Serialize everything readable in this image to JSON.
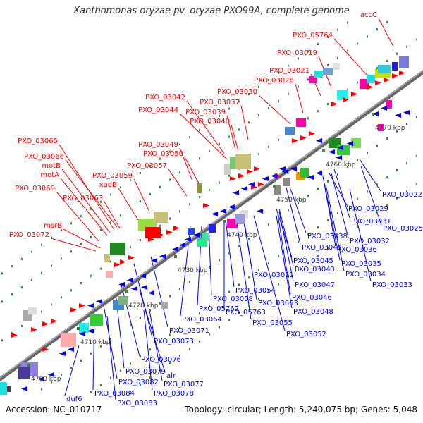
{
  "title": "Xanthomonas oryzae pv. oryzae PXO99A, complete genome",
  "footer": {
    "accession": "Accession: NC_010717",
    "summary": "Topology: circular; Length: 5,240,075 bp; Genes: 5,048"
  },
  "colors": {
    "forward_label": "#ee0000",
    "reverse_label": "#0000dd",
    "backbone": "#777777",
    "tick": "#339933"
  },
  "position_ticks": [
    {
      "label": "4700 kbp"
    },
    {
      "label": "4710 kbp"
    },
    {
      "label": "4720 kbp"
    },
    {
      "label": "4730 kbp"
    },
    {
      "label": "4740 kbp"
    },
    {
      "label": "4750 kbp"
    },
    {
      "label": "4760 kbp"
    },
    {
      "label": "4770 kbp"
    }
  ],
  "forward_labels": [
    {
      "text": "accC"
    },
    {
      "text": "PXO_05764"
    },
    {
      "text": "PXO_03019"
    },
    {
      "text": "PXO_03021"
    },
    {
      "text": "PXO_03028"
    },
    {
      "text": "PXO_03030"
    },
    {
      "text": "PXO_03042"
    },
    {
      "text": "PXO_03037"
    },
    {
      "text": "PXO_03044"
    },
    {
      "text": "PXO_03039"
    },
    {
      "text": "PXO_03040"
    },
    {
      "text": "PXO_03049"
    },
    {
      "text": "PXO_03065"
    },
    {
      "text": "PXO_03050"
    },
    {
      "text": "PXO_03066"
    },
    {
      "text": "PXO_03057"
    },
    {
      "text": "motB"
    },
    {
      "text": "motA"
    },
    {
      "text": "PXO_03059"
    },
    {
      "text": "xadB"
    },
    {
      "text": "PXO_03069"
    },
    {
      "text": "PXO_03063"
    },
    {
      "text": "msrB"
    },
    {
      "text": "PXO_03072"
    }
  ],
  "reverse_labels": [
    {
      "text": "PXO_03022"
    },
    {
      "text": "PXO_03029"
    },
    {
      "text": "PXO_03031"
    },
    {
      "text": "PXO_03025"
    },
    {
      "text": "PXO_03038"
    },
    {
      "text": "PXO_03032"
    },
    {
      "text": "PXO_03041"
    },
    {
      "text": "PXO_03036"
    },
    {
      "text": "PXO_03045"
    },
    {
      "text": "PXO_03035"
    },
    {
      "text": "PXO_03043"
    },
    {
      "text": "PXO_03034"
    },
    {
      "text": "PXO_03051"
    },
    {
      "text": "PXO_03033"
    },
    {
      "text": "PXO_03047"
    },
    {
      "text": "PXO_03054"
    },
    {
      "text": "PXO_03046"
    },
    {
      "text": "PXO_03058"
    },
    {
      "text": "PXO_03053"
    },
    {
      "text": "PXO_05762"
    },
    {
      "text": "PXO_05763"
    },
    {
      "text": "PXO_03048"
    },
    {
      "text": "PXO_03064"
    },
    {
      "text": "PXO_03055"
    },
    {
      "text": "PXO_03071"
    },
    {
      "text": "PXO_03052"
    },
    {
      "text": "PXO_03073"
    },
    {
      "text": "PXO_03076"
    },
    {
      "text": "PXO_03079"
    },
    {
      "text": "alr"
    },
    {
      "text": "PXO_03082"
    },
    {
      "text": "PXO_03077"
    },
    {
      "text": "PXO_03078"
    },
    {
      "text": "PXO_03084"
    },
    {
      "text": "duf6"
    },
    {
      "text": "PXO_03083"
    }
  ]
}
